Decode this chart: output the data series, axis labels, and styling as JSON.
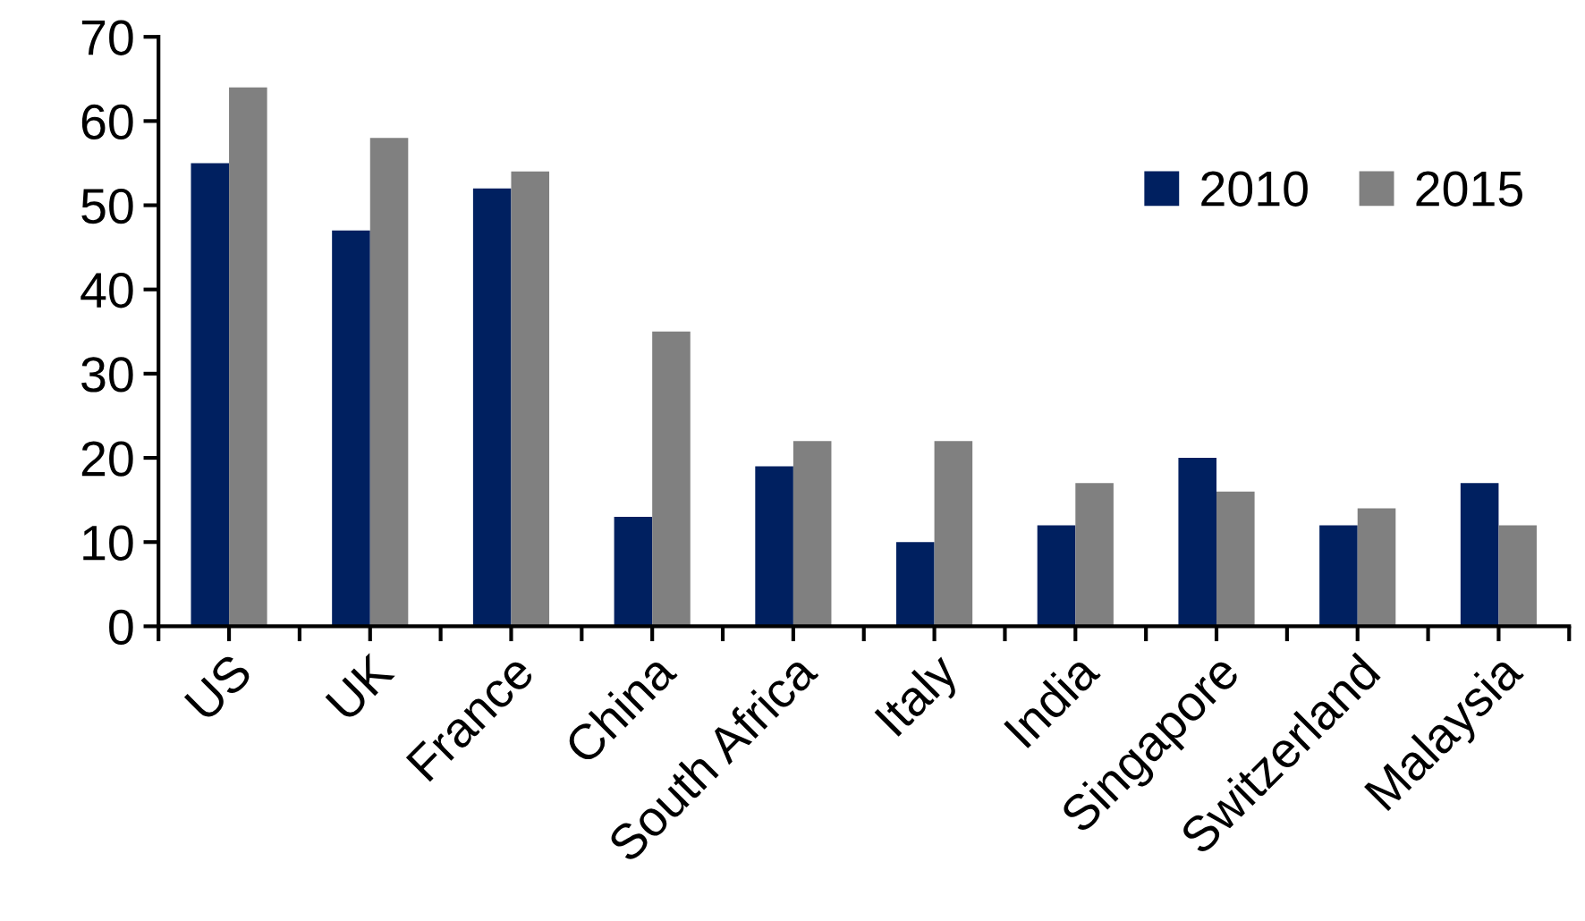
{
  "chart_data": {
    "type": "bar",
    "categories": [
      "US",
      "UK",
      "France",
      "China",
      "South Africa",
      "Italy",
      "India",
      "Singapore",
      "Switzerland",
      "Malaysia"
    ],
    "series": [
      {
        "name": "2010",
        "color": "#002060",
        "values": [
          55,
          47,
          52,
          13,
          19,
          10,
          12,
          20,
          12,
          17
        ]
      },
      {
        "name": "2015",
        "color": "#808080",
        "values": [
          64,
          58,
          54,
          35,
          22,
          22,
          17,
          16,
          14,
          12
        ]
      }
    ],
    "ylim": [
      0,
      70
    ],
    "yticks": [
      0,
      10,
      20,
      30,
      40,
      50,
      60,
      70
    ],
    "grid": false,
    "legend": "top right"
  }
}
